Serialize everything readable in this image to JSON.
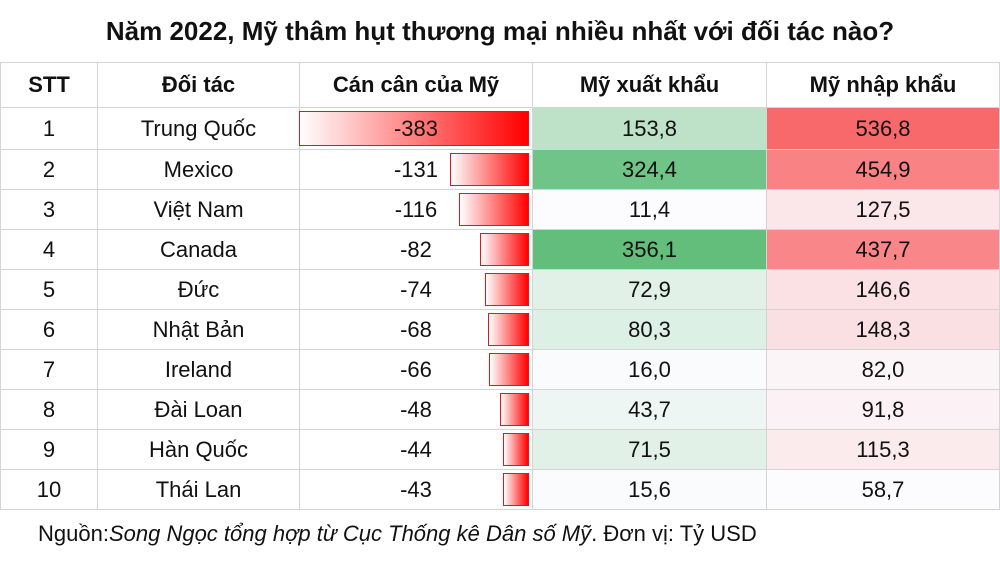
{
  "title": "Năm 2022, Mỹ thâm hụt thương mại nhiều nhất với đối tác nào?",
  "header": [
    "STT",
    "Đối tác",
    "Cán cân của Mỹ",
    "Mỹ xuất khẩu",
    "Mỹ nhập khẩu"
  ],
  "rows": [
    {
      "stt": 1,
      "partner": "Trung Quốc",
      "balance": -383,
      "export": {
        "value": 153.8,
        "label": "153,8"
      },
      "import": {
        "value": 536.8,
        "label": "536,8"
      }
    },
    {
      "stt": 2,
      "partner": "Mexico",
      "balance": -131,
      "export": {
        "value": 324.4,
        "label": "324,4"
      },
      "import": {
        "value": 454.9,
        "label": "454,9"
      }
    },
    {
      "stt": 3,
      "partner": "Việt Nam",
      "balance": -116,
      "export": {
        "value": 11.4,
        "label": "11,4"
      },
      "import": {
        "value": 127.5,
        "label": "127,5"
      }
    },
    {
      "stt": 4,
      "partner": "Canada",
      "balance": -82,
      "export": {
        "value": 356.1,
        "label": "356,1"
      },
      "import": {
        "value": 437.7,
        "label": "437,7"
      }
    },
    {
      "stt": 5,
      "partner": "Đức",
      "balance": -74,
      "export": {
        "value": 72.9,
        "label": "72,9"
      },
      "import": {
        "value": 146.6,
        "label": "146,6"
      }
    },
    {
      "stt": 6,
      "partner": "Nhật Bản",
      "balance": -68,
      "export": {
        "value": 80.3,
        "label": "80,3"
      },
      "import": {
        "value": 148.3,
        "label": "148,3"
      }
    },
    {
      "stt": 7,
      "partner": "Ireland",
      "balance": -66,
      "export": {
        "value": 16.0,
        "label": "16,0"
      },
      "import": {
        "value": 82.0,
        "label": "82,0"
      }
    },
    {
      "stt": 8,
      "partner": "Đài Loan",
      "balance": -48,
      "export": {
        "value": 43.7,
        "label": "43,7"
      },
      "import": {
        "value": 91.8,
        "label": "91,8"
      }
    },
    {
      "stt": 9,
      "partner": "Hàn Quốc",
      "balance": -44,
      "export": {
        "value": 71.5,
        "label": "71,5"
      },
      "import": {
        "value": 115.3,
        "label": "115,3"
      }
    },
    {
      "stt": 10,
      "partner": "Thái Lan",
      "balance": -43,
      "export": {
        "value": 15.6,
        "label": "15,6"
      },
      "import": {
        "value": 58.7,
        "label": "58,7"
      }
    }
  ],
  "footer": {
    "label": "Nguồn:",
    "source": "Song Ngọc tổng hợp từ Cục Thống kê Dân số Mỹ",
    "unit": ". Đơn vị: Tỷ USD"
  }
}
